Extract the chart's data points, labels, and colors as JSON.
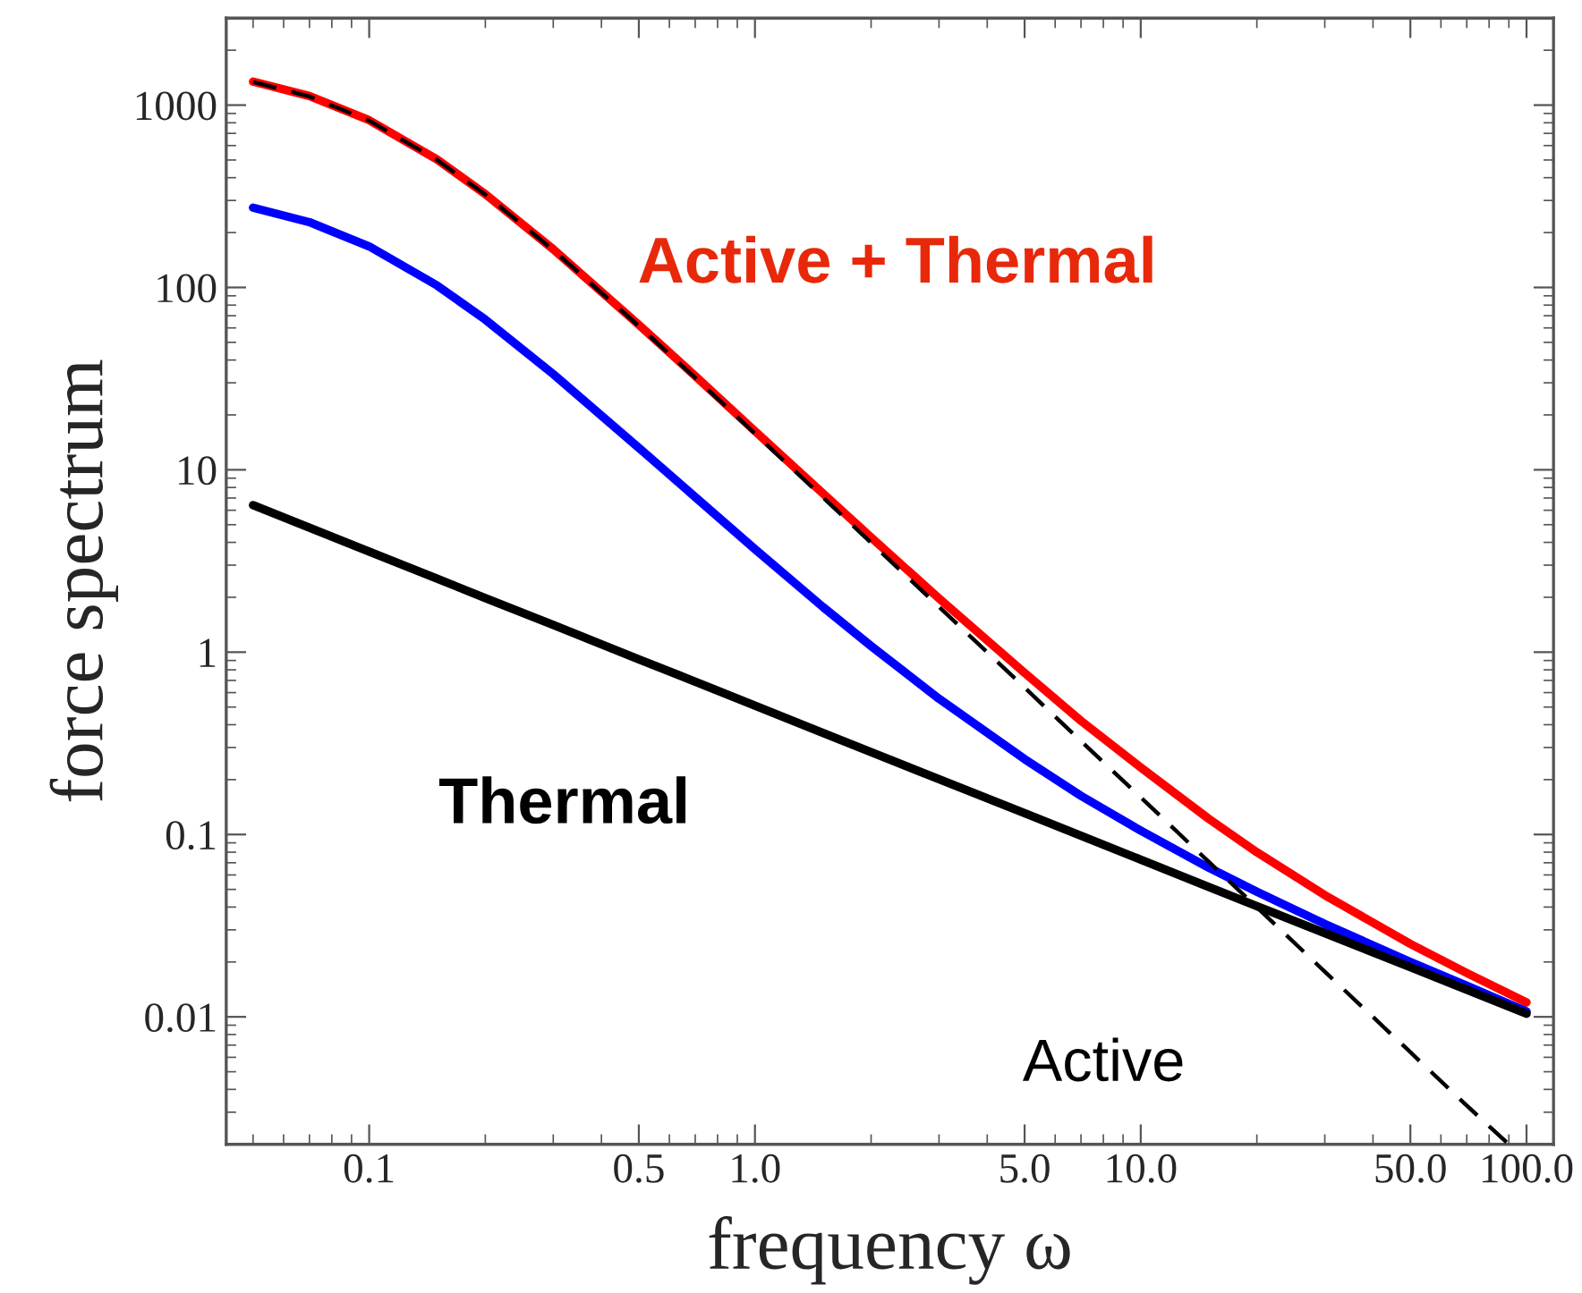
{
  "chart_data": {
    "type": "line",
    "xlabel": "frequency ω",
    "ylabel": "force spectrum",
    "log": "xy",
    "grid": false,
    "legend": false,
    "x": [
      0.05,
      0.07,
      0.1,
      0.15,
      0.2,
      0.3,
      0.5,
      0.7,
      1,
      1.5,
      2,
      3,
      5,
      7,
      10,
      15,
      20,
      30,
      50,
      70,
      100
    ],
    "series": [
      {
        "name": "Active + Thermal",
        "color": "#ff0000",
        "line_style": "solid",
        "values": [
          1346,
          1121,
          826,
          503,
          325,
          162,
          62.4,
          32.7,
          16.3,
          7.42,
          4.26,
          1.97,
          0.77,
          0.42,
          0.233,
          0.122,
          0.08,
          0.0465,
          0.0251,
          0.0174,
          0.012
        ]
      },
      {
        "color": "#0000ff",
        "line_style": "solid",
        "values": [
          274,
          228,
          168,
          102.5,
          66.6,
          33.5,
          13.2,
          7.09,
          3.67,
          1.77,
          1.08,
          0.555,
          0.259,
          0.163,
          0.105,
          0.0658,
          0.0485,
          0.0323,
          0.02,
          0.0148,
          0.0107
        ]
      },
      {
        "name": "Thermal",
        "color": "#000000",
        "line_style": "solid",
        "values": [
          6.4,
          4.81,
          3.56,
          2.53,
          1.98,
          1.41,
          0.914,
          0.689,
          0.509,
          0.361,
          0.283,
          0.201,
          0.131,
          0.0984,
          0.0728,
          0.0516,
          0.0405,
          0.0288,
          0.0187,
          0.0141,
          0.0104
        ]
      },
      {
        "name": "Active",
        "color": "#000000",
        "line_style": "dashed",
        "x": [
          0.05,
          0.07,
          0.1,
          0.15,
          0.2,
          0.3,
          0.5,
          0.7,
          1,
          1.5,
          2,
          3,
          5,
          7,
          10,
          15,
          20,
          30,
          50,
          70,
          90
        ],
        "values": [
          1340,
          1116,
          822,
          500,
          323,
          160.5,
          61.5,
          32,
          15.8,
          7.06,
          3.98,
          1.77,
          0.64,
          0.325,
          0.16,
          0.0709,
          0.0399,
          0.0177,
          0.0064,
          0.00326,
          0.002
        ]
      }
    ],
    "xlim": [
      0.0426,
      117.5
    ],
    "ylim": [
      0.002,
      3000
    ],
    "xticks": [
      0.1,
      {
        "value": 0.5,
        "label": "0.5"
      },
      {
        "value": 1,
        "label": "1.0"
      },
      {
        "value": 5,
        "label": "5.0"
      },
      {
        "value": 10,
        "label": "10.0"
      },
      {
        "value": 50,
        "label": "50.0"
      },
      {
        "value": 100,
        "label": "100.0"
      }
    ],
    "yticks": [
      0.01,
      0.1,
      1,
      10,
      100,
      1000
    ]
  }
}
